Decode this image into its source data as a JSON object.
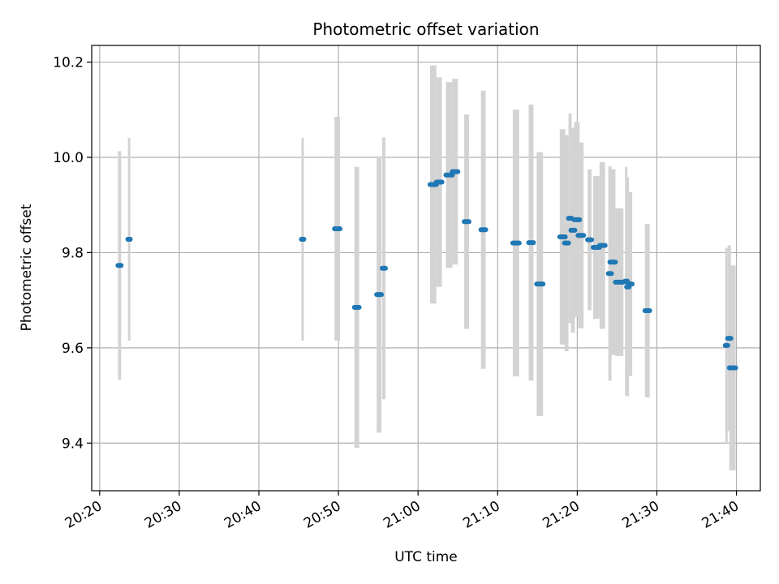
{
  "chart_data": {
    "type": "scatter",
    "title": "Photometric offset variation",
    "xlabel": "UTC time",
    "ylabel": "Photometric offset",
    "x_unit": "UTC time (HH:MM)",
    "xlim": [
      "20:19:00",
      "21:43:00"
    ],
    "ylim": [
      9.3,
      10.235
    ],
    "x_ticks": [
      "20:20",
      "20:30",
      "20:40",
      "20:50",
      "21:00",
      "21:10",
      "21:20",
      "21:30",
      "21:40"
    ],
    "y_ticks": [
      9.4,
      9.6,
      9.8,
      10.0,
      10.2
    ],
    "y_tick_labels": [
      "9.4",
      "9.6",
      "9.8",
      "10.0",
      "10.2"
    ],
    "grid": true,
    "legend": "none",
    "colors": {
      "point": "#1f77b4",
      "errorbar": "#d3d3d3",
      "grid": "#b0b0b0"
    },
    "points": [
      {
        "t_start": "20:22:18",
        "t_end": "20:22:42",
        "y": 9.773,
        "err": 0.24
      },
      {
        "t_start": "20:23:36",
        "t_end": "20:23:48",
        "y": 9.828,
        "err": 0.213
      },
      {
        "t_start": "20:45:24",
        "t_end": "20:45:36",
        "y": 9.828,
        "err": 0.213
      },
      {
        "t_start": "20:49:30",
        "t_end": "20:50:12",
        "y": 9.85,
        "err": 0.235
      },
      {
        "t_start": "20:52:00",
        "t_end": "20:52:36",
        "y": 9.685,
        "err": 0.295
      },
      {
        "t_start": "20:54:48",
        "t_end": "20:55:24",
        "y": 9.712,
        "err": 0.29
      },
      {
        "t_start": "20:55:30",
        "t_end": "20:55:54",
        "y": 9.767,
        "err": 0.275
      },
      {
        "t_start": "21:01:30",
        "t_end": "21:02:18",
        "y": 9.943,
        "err": 0.25
      },
      {
        "t_start": "21:02:18",
        "t_end": "21:03:00",
        "y": 9.948,
        "err": 0.22
      },
      {
        "t_start": "21:03:30",
        "t_end": "21:04:18",
        "y": 9.963,
        "err": 0.195
      },
      {
        "t_start": "21:04:18",
        "t_end": "21:05:00",
        "y": 9.97,
        "err": 0.195
      },
      {
        "t_start": "21:05:48",
        "t_end": "21:06:24",
        "y": 9.865,
        "err": 0.225
      },
      {
        "t_start": "21:07:54",
        "t_end": "21:08:30",
        "y": 9.848,
        "err": 0.292
      },
      {
        "t_start": "21:11:54",
        "t_end": "21:12:42",
        "y": 9.82,
        "err": 0.28
      },
      {
        "t_start": "21:13:54",
        "t_end": "21:14:30",
        "y": 9.821,
        "err": 0.29
      },
      {
        "t_start": "21:14:54",
        "t_end": "21:15:42",
        "y": 9.734,
        "err": 0.277
      },
      {
        "t_start": "21:17:48",
        "t_end": "21:18:30",
        "y": 9.833,
        "err": 0.226
      },
      {
        "t_start": "21:18:24",
        "t_end": "21:18:54",
        "y": 9.82,
        "err": 0.227
      },
      {
        "t_start": "21:18:54",
        "t_end": "21:19:18",
        "y": 9.872,
        "err": 0.22
      },
      {
        "t_start": "21:19:12",
        "t_end": "21:19:42",
        "y": 9.847,
        "err": 0.215
      },
      {
        "t_start": "21:19:36",
        "t_end": "21:20:18",
        "y": 9.869,
        "err": 0.205
      },
      {
        "t_start": "21:20:06",
        "t_end": "21:20:48",
        "y": 9.836,
        "err": 0.195
      },
      {
        "t_start": "21:21:18",
        "t_end": "21:21:48",
        "y": 9.827,
        "err": 0.148
      },
      {
        "t_start": "21:22:00",
        "t_end": "21:22:48",
        "y": 9.811,
        "err": 0.15
      },
      {
        "t_start": "21:22:48",
        "t_end": "21:23:30",
        "y": 9.815,
        "err": 0.175
      },
      {
        "t_start": "21:23:54",
        "t_end": "21:24:18",
        "y": 9.756,
        "err": 0.225
      },
      {
        "t_start": "21:24:06",
        "t_end": "21:24:48",
        "y": 9.78,
        "err": 0.195
      },
      {
        "t_start": "21:24:48",
        "t_end": "21:25:48",
        "y": 9.738,
        "err": 0.155
      },
      {
        "t_start": "21:26:00",
        "t_end": "21:26:18",
        "y": 9.74,
        "err": 0.24
      },
      {
        "t_start": "21:26:12",
        "t_end": "21:26:30",
        "y": 9.728,
        "err": 0.23
      },
      {
        "t_start": "21:26:24",
        "t_end": "21:26:54",
        "y": 9.734,
        "err": 0.193
      },
      {
        "t_start": "21:28:30",
        "t_end": "21:29:06",
        "y": 9.678,
        "err": 0.182
      },
      {
        "t_start": "21:38:36",
        "t_end": "21:38:54",
        "y": 9.605,
        "err": 0.205
      },
      {
        "t_start": "21:38:54",
        "t_end": "21:39:18",
        "y": 9.62,
        "err": 0.195
      },
      {
        "t_start": "21:39:06",
        "t_end": "21:39:54",
        "y": 9.558,
        "err": 0.215
      }
    ]
  }
}
